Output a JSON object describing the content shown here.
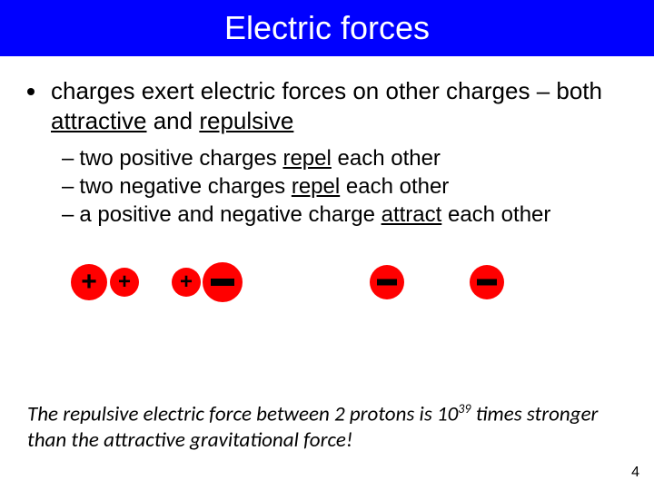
{
  "title": "Electric forces",
  "main_bullet_pre": "charges exert electric forces on other charges – both ",
  "main_bullet_u1": "attractive",
  "main_bullet_mid": " and ",
  "main_bullet_u2": "repulsive",
  "sub_items": [
    {
      "pre": "two positive charges ",
      "u": "repel",
      "post": " each other"
    },
    {
      "pre": "two negative charges ",
      "u": "repel",
      "post": " each other"
    },
    {
      "pre": "a positive and negative charge ",
      "u": "attract",
      "post": " each other"
    }
  ],
  "plus_glyph": "+",
  "footer_pre": "The repulsive electric force between 2 protons is  10",
  "footer_exp": "39",
  "footer_post": " times stronger than the attractive gravitational force!",
  "page_number": "4",
  "colors": {
    "title_bg": "#0000ff",
    "title_fg": "#ffffff",
    "charge_fill": "#ff0000",
    "text": "#000000"
  }
}
